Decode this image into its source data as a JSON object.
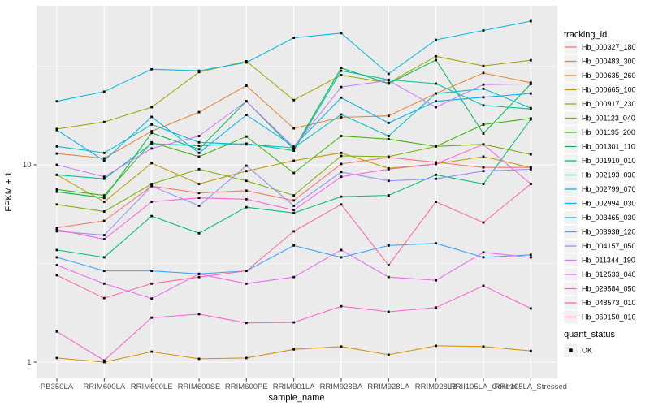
{
  "figure": {
    "background": "#FFFFFF",
    "panel_background": "#EBEBEB",
    "grid_major_color": "#FFFFFF",
    "grid_minor_color": "#FFFFFF",
    "tick_color": "#333333",
    "tick_label_color": "#4D4D4D",
    "axis_title_color": "#000000",
    "point_color": "#000000",
    "legend_key_fill": "#F2F2F2"
  },
  "legend": {
    "tracking_title": "tracking_id",
    "quant_title": "quant_status",
    "quant_items": [
      {
        "label": "OK",
        "shape": "black-square"
      }
    ]
  },
  "chart_data": {
    "type": "line",
    "title": "",
    "xlabel": "sample_name",
    "ylabel": "FPKM + 1",
    "y_scale": "log10",
    "y_ticks": [
      10,
      1
    ],
    "y_minor_ticks": [
      31.62,
      3.162
    ],
    "ylim": [
      0.95,
      65
    ],
    "grid": true,
    "legend_position": "right",
    "point_marker": "black-square",
    "categories": [
      "PB350LA",
      "RRIM600LA",
      "RRIM600LE",
      "RRIM600SE",
      "RRIM600PE",
      "RRIM901LA",
      "RRIM928BA",
      "RRIM928LA",
      "RRIM928LB",
      "RRII105LA_Control",
      "RRII105LA_Stressed"
    ],
    "series": [
      {
        "name": "Hb_000327_180",
        "color": "#F8766D",
        "values": [
          4.8,
          5.2,
          7.8,
          7.2,
          7.4,
          6.6,
          10.1,
          10.9,
          10.3,
          9.7,
          9.7
        ]
      },
      {
        "name": "Hb_000483_300",
        "color": "#EA8331",
        "values": [
          11.4,
          10.8,
          14.8,
          18.5,
          25.2,
          15.3,
          17.4,
          17.7,
          23.0,
          29.2,
          26.1
        ]
      },
      {
        "name": "Hb_000635_260",
        "color": "#D89000",
        "values": [
          1.05,
          1.0,
          1.13,
          1.04,
          1.05,
          1.16,
          1.2,
          1.09,
          1.21,
          1.2,
          1.14
        ]
      },
      {
        "name": "Hb_000665_100",
        "color": "#C09B00",
        "values": [
          8.9,
          6.5,
          10.2,
          8.0,
          9.3,
          10.5,
          11.5,
          9.6,
          10.1,
          11.0,
          9.7
        ]
      },
      {
        "name": "Hb_000917_230",
        "color": "#A3A500",
        "values": [
          15.2,
          16.5,
          19.6,
          29.5,
          33.5,
          21.3,
          28.5,
          26.0,
          35.5,
          31.7,
          33.9
        ]
      },
      {
        "name": "Hb_001123_040",
        "color": "#7CAE00",
        "values": [
          6.3,
          5.8,
          8.0,
          9.5,
          8.3,
          7.0,
          11.1,
          11.0,
          12.4,
          12.7,
          11.3
        ]
      },
      {
        "name": "Hb_001195_200",
        "color": "#39B600",
        "values": [
          7.5,
          7.0,
          13.0,
          11.0,
          13.9,
          9.1,
          14.0,
          13.5,
          12.4,
          16.0,
          17.2
        ]
      },
      {
        "name": "Hb_001301_110",
        "color": "#00BB4E",
        "values": [
          7.3,
          6.8,
          14.5,
          12.0,
          21.0,
          12.0,
          31.0,
          25.8,
          34.0,
          14.4,
          25.7
        ]
      },
      {
        "name": "Hb_001910_010",
        "color": "#00BF7D",
        "values": [
          3.7,
          3.4,
          5.5,
          4.5,
          6.1,
          5.7,
          6.9,
          7.0,
          8.9,
          8.0,
          17.0
        ]
      },
      {
        "name": "Hb_002193_030",
        "color": "#00C1A3",
        "values": [
          8.9,
          8.5,
          12.8,
          12.5,
          12.8,
          11.8,
          30.0,
          27.0,
          25.8,
          20.0,
          19.2
        ]
      },
      {
        "name": "Hb_002799_070",
        "color": "#00BFC4",
        "values": [
          12.4,
          11.5,
          16.0,
          13.0,
          12.7,
          12.2,
          18.0,
          14.0,
          23.0,
          24.3,
          19.4
        ]
      },
      {
        "name": "Hb_002994_030",
        "color": "#00BAE0",
        "values": [
          21.0,
          23.5,
          30.5,
          30.0,
          33.0,
          44.0,
          46.5,
          28.9,
          43.0,
          48.0,
          53.5
        ]
      },
      {
        "name": "Hb_003465_030",
        "color": "#00B0F6",
        "values": [
          15.0,
          10.5,
          17.5,
          11.5,
          17.9,
          12.4,
          21.9,
          16.3,
          21.0,
          22.0,
          23.0
        ]
      },
      {
        "name": "Hb_003938_120",
        "color": "#35A2FF",
        "values": [
          3.4,
          2.9,
          2.9,
          2.8,
          2.9,
          3.9,
          3.4,
          3.9,
          4.0,
          3.4,
          3.5
        ]
      },
      {
        "name": "Hb_004157_050",
        "color": "#9590FF",
        "values": [
          4.6,
          4.4,
          7.8,
          6.2,
          9.9,
          6.2,
          9.2,
          8.3,
          8.5,
          9.3,
          9.5
        ]
      },
      {
        "name": "Hb_011344_190",
        "color": "#C77CFF",
        "values": [
          10.0,
          8.7,
          12.1,
          14.0,
          21.0,
          12.3,
          24.8,
          26.8,
          19.6,
          25.5,
          25.7
        ]
      },
      {
        "name": "Hb_012533_040",
        "color": "#E76BF3",
        "values": [
          3.1,
          2.5,
          2.1,
          2.8,
          2.5,
          2.7,
          3.7,
          2.7,
          2.6,
          3.6,
          3.4
        ]
      },
      {
        "name": "Hb_029584_050",
        "color": "#FA62DB",
        "values": [
          4.7,
          4.2,
          6.5,
          6.8,
          6.7,
          5.9,
          8.7,
          9.5,
          10.1,
          12.7,
          8.0
        ]
      },
      {
        "name": "Hb_048573_010",
        "color": "#FF61CC",
        "values": [
          1.43,
          1.02,
          1.68,
          1.75,
          1.58,
          1.59,
          1.92,
          1.8,
          1.89,
          2.44,
          1.87
        ]
      },
      {
        "name": "Hb_069150_010",
        "color": "#FF67A4",
        "values": [
          2.76,
          2.11,
          2.5,
          2.7,
          2.9,
          4.6,
          6.3,
          3.1,
          6.5,
          5.1,
          8.0
        ]
      }
    ]
  }
}
